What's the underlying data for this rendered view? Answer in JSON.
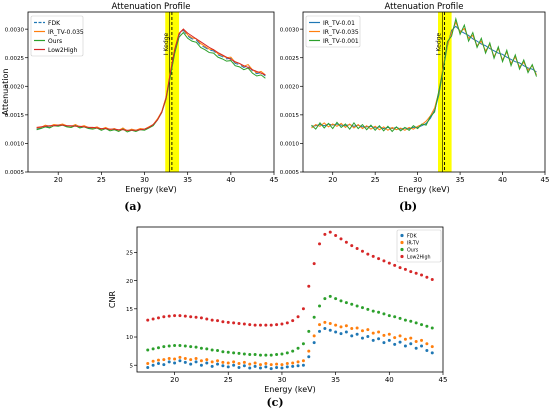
{
  "captions": {
    "a": "(a)",
    "b": "(b)",
    "c": "(c)"
  },
  "chart_data": [
    {
      "id": "a",
      "type": "line",
      "title": "Attenuation Profile",
      "xlabel": "Energy (keV)",
      "ylabel": "Attenuation",
      "xlim": [
        16.5,
        45
      ],
      "ylim": [
        0.0005,
        0.0033
      ],
      "xticks": [
        20,
        25,
        30,
        35,
        40,
        45
      ],
      "yticks": [
        0.0005,
        0.001,
        0.0015,
        0.002,
        0.0025,
        0.003
      ],
      "ytick_labels": [
        "0.0005",
        "0.0010",
        "0.0015",
        "0.0020",
        "0.0025",
        "0.0030"
      ],
      "legend_position": "top-left",
      "grid": false,
      "kedge": {
        "label": "I Kedge",
        "x": 33.17,
        "band": [
          32.4,
          34.0
        ],
        "color": "#ffff00"
      },
      "x": [
        17.5,
        18,
        18.5,
        19,
        19.5,
        20,
        20.5,
        21,
        21.5,
        22,
        22.5,
        23,
        23.5,
        24,
        24.5,
        25,
        25.5,
        26,
        26.5,
        27,
        27.5,
        28,
        28.5,
        29,
        29.5,
        30,
        30.5,
        31,
        31.5,
        32,
        32.5,
        33,
        33.5,
        34,
        34.5,
        35,
        35.5,
        36,
        36.5,
        37,
        37.5,
        38,
        38.5,
        39,
        39.5,
        40,
        40.5,
        41,
        41.5,
        42,
        42.5,
        43,
        43.5,
        44
      ],
      "series": [
        {
          "name": "FDK",
          "color": "#1f77b4",
          "dash": "6,3",
          "values": [
            0.00125,
            0.00127,
            0.0013,
            0.00128,
            0.00132,
            0.00131,
            0.00133,
            0.0013,
            0.00129,
            0.00132,
            0.00128,
            0.0013,
            0.00127,
            0.00126,
            0.00128,
            0.00124,
            0.00127,
            0.00123,
            0.00125,
            0.00122,
            0.00126,
            0.00121,
            0.00124,
            0.00122,
            0.00125,
            0.00124,
            0.00128,
            0.00132,
            0.00142,
            0.00155,
            0.0018,
            0.0022,
            0.0026,
            0.0029,
            0.00298,
            0.00288,
            0.00283,
            0.00281,
            0.00272,
            0.00268,
            0.00263,
            0.00262,
            0.00255,
            0.00252,
            0.00248,
            0.00249,
            0.0024,
            0.00238,
            0.00233,
            0.00236,
            0.00227,
            0.00222,
            0.00224,
            0.00218
          ]
        },
        {
          "name": "IR_TV-0.035",
          "color": "#ff7f0e",
          "dash": "",
          "values": [
            0.00127,
            0.00128,
            0.00132,
            0.0013,
            0.00133,
            0.00132,
            0.00134,
            0.00131,
            0.0013,
            0.00133,
            0.00129,
            0.00131,
            0.00128,
            0.00127,
            0.00129,
            0.00125,
            0.00128,
            0.00124,
            0.00126,
            0.00123,
            0.00127,
            0.00122,
            0.00125,
            0.00123,
            0.00126,
            0.00125,
            0.00129,
            0.00133,
            0.00143,
            0.00156,
            0.00181,
            0.00222,
            0.00262,
            0.00293,
            0.003,
            0.0029,
            0.00285,
            0.00283,
            0.00275,
            0.0027,
            0.00265,
            0.00264,
            0.00257,
            0.00254,
            0.0025,
            0.00251,
            0.00242,
            0.0024,
            0.00235,
            0.00238,
            0.00229,
            0.00224,
            0.00226,
            0.0022
          ]
        },
        {
          "name": "Ours",
          "color": "#2ca02c",
          "dash": "",
          "values": [
            0.00124,
            0.00126,
            0.00129,
            0.00127,
            0.00131,
            0.0013,
            0.00132,
            0.00129,
            0.00128,
            0.00131,
            0.00127,
            0.00129,
            0.00126,
            0.00125,
            0.00127,
            0.00123,
            0.00126,
            0.00122,
            0.00124,
            0.00121,
            0.00125,
            0.0012,
            0.00123,
            0.00121,
            0.00124,
            0.00123,
            0.00127,
            0.00131,
            0.00141,
            0.00154,
            0.00178,
            0.00218,
            0.00258,
            0.00286,
            0.00294,
            0.00284,
            0.00279,
            0.00277,
            0.00268,
            0.00264,
            0.00259,
            0.00258,
            0.00251,
            0.00248,
            0.00244,
            0.00245,
            0.00236,
            0.00234,
            0.00229,
            0.00232,
            0.00223,
            0.00218,
            0.0022,
            0.00214
          ]
        },
        {
          "name": "Low2High",
          "color": "#d62728",
          "dash": "",
          "values": [
            0.00128,
            0.00129,
            0.0013,
            0.00131,
            0.00131,
            0.00132,
            0.00132,
            0.00131,
            0.00131,
            0.0013,
            0.0013,
            0.00129,
            0.00128,
            0.00128,
            0.00127,
            0.00126,
            0.00126,
            0.00125,
            0.00125,
            0.00124,
            0.00124,
            0.00123,
            0.00123,
            0.00123,
            0.00124,
            0.00125,
            0.00128,
            0.00133,
            0.00141,
            0.00155,
            0.0018,
            0.00225,
            0.00265,
            0.00292,
            0.003,
            0.00293,
            0.00288,
            0.00283,
            0.00278,
            0.00273,
            0.00268,
            0.00264,
            0.00259,
            0.00255,
            0.00251,
            0.00247,
            0.00243,
            0.0024,
            0.00236,
            0.00233,
            0.00229,
            0.00226,
            0.00223,
            0.0022
          ]
        }
      ]
    },
    {
      "id": "b",
      "type": "line",
      "title": "Attenuation Profile",
      "xlabel": "Energy (keV)",
      "ylabel": "",
      "xlim": [
        16.5,
        45
      ],
      "ylim": [
        0.0005,
        0.0033
      ],
      "xticks": [
        20,
        25,
        30,
        35,
        40,
        45
      ],
      "yticks": [
        0.0005,
        0.001,
        0.0015,
        0.002,
        0.0025,
        0.003
      ],
      "ytick_labels": [
        "0.0005",
        "0.0010",
        "0.0015",
        "0.0020",
        "0.0025",
        "0.0030"
      ],
      "legend_position": "top-left",
      "grid": false,
      "kedge": {
        "label": "I Kedge",
        "x": 33.17,
        "band": [
          32.4,
          34.0
        ],
        "color": "#ffff00"
      },
      "x": [
        17.5,
        18,
        18.5,
        19,
        19.5,
        20,
        20.5,
        21,
        21.5,
        22,
        22.5,
        23,
        23.5,
        24,
        24.5,
        25,
        25.5,
        26,
        26.5,
        27,
        27.5,
        28,
        28.5,
        29,
        29.5,
        30,
        30.5,
        31,
        31.5,
        32,
        32.5,
        33,
        33.5,
        34,
        34.5,
        35,
        35.5,
        36,
        36.5,
        37,
        37.5,
        38,
        38.5,
        39,
        39.5,
        40,
        40.5,
        41,
        41.5,
        42,
        42.5,
        43,
        43.5,
        44
      ],
      "series": [
        {
          "name": "IR_TV-0.01",
          "color": "#1f77b4",
          "dash": "",
          "values": [
            0.0013,
            0.00131,
            0.00133,
            0.00131,
            0.00134,
            0.00132,
            0.00134,
            0.00132,
            0.00131,
            0.00133,
            0.0013,
            0.00132,
            0.00129,
            0.00129,
            0.0013,
            0.00127,
            0.00129,
            0.00126,
            0.00128,
            0.00126,
            0.00128,
            0.00125,
            0.00127,
            0.00126,
            0.00128,
            0.00128,
            0.00131,
            0.00135,
            0.00144,
            0.00158,
            0.00185,
            0.0023,
            0.0027,
            0.00298,
            0.00305,
            0.00297,
            0.00293,
            0.00289,
            0.00283,
            0.00279,
            0.00274,
            0.00271,
            0.00266,
            0.00262,
            0.00258,
            0.00256,
            0.00251,
            0.00247,
            0.00243,
            0.00241,
            0.00236,
            0.00232,
            0.0023,
            0.00225
          ]
        },
        {
          "name": "IR_TV-0.035",
          "color": "#ff7f0e",
          "dash": "",
          "values": [
            0.00127,
            0.00133,
            0.0013,
            0.00136,
            0.00129,
            0.00134,
            0.0013,
            0.00135,
            0.00128,
            0.00134,
            0.00127,
            0.00133,
            0.00126,
            0.00131,
            0.00125,
            0.0013,
            0.00124,
            0.00129,
            0.00123,
            0.00128,
            0.00124,
            0.00127,
            0.00123,
            0.00128,
            0.00125,
            0.0013,
            0.00133,
            0.00139,
            0.00148,
            0.00162,
            0.0019,
            0.00235,
            0.00272,
            0.00294,
            0.00312,
            0.00295,
            0.00301,
            0.00284,
            0.00289,
            0.00271,
            0.00279,
            0.00262,
            0.00273,
            0.00252,
            0.00266,
            0.00246,
            0.0026,
            0.0024,
            0.00251,
            0.00234,
            0.00242,
            0.00228,
            0.00236,
            0.0022
          ]
        },
        {
          "name": "IR_TV-0.001",
          "color": "#2ca02c",
          "dash": "",
          "values": [
            0.00132,
            0.00125,
            0.00136,
            0.00127,
            0.00135,
            0.00126,
            0.00137,
            0.00128,
            0.00134,
            0.00125,
            0.00136,
            0.00126,
            0.00133,
            0.00124,
            0.00132,
            0.00123,
            0.00131,
            0.00122,
            0.0013,
            0.00121,
            0.00129,
            0.00122,
            0.00128,
            0.00123,
            0.00131,
            0.00126,
            0.00134,
            0.00132,
            0.00147,
            0.00155,
            0.00192,
            0.00228,
            0.00278,
            0.00288,
            0.00318,
            0.00291,
            0.00307,
            0.00279,
            0.00294,
            0.00268,
            0.00284,
            0.00258,
            0.00276,
            0.00249,
            0.00269,
            0.00243,
            0.00263,
            0.00236,
            0.00255,
            0.0023,
            0.00246,
            0.00224,
            0.00238,
            0.00217
          ]
        }
      ]
    },
    {
      "id": "c",
      "type": "scatter",
      "title": "",
      "xlabel": "Energy (keV)",
      "ylabel": "CNR",
      "xlim": [
        16.5,
        45
      ],
      "ylim": [
        3.8,
        29.5
      ],
      "xticks": [
        20,
        25,
        30,
        35,
        40,
        45
      ],
      "yticks": [
        5,
        10,
        15,
        20,
        25
      ],
      "ytick_labels": [
        "5",
        "10",
        "15",
        "20",
        "25"
      ],
      "legend_position": "top-right",
      "grid": false,
      "x": [
        17.5,
        18,
        18.5,
        19,
        19.5,
        20,
        20.5,
        21,
        21.5,
        22,
        22.5,
        23,
        23.5,
        24,
        24.5,
        25,
        25.5,
        26,
        26.5,
        27,
        27.5,
        28,
        28.5,
        29,
        29.5,
        30,
        30.5,
        31,
        31.5,
        32,
        32.5,
        33,
        33.5,
        34,
        34.5,
        35,
        35.5,
        36,
        36.5,
        37,
        37.5,
        38,
        38.5,
        39,
        39.5,
        40,
        40.5,
        41,
        41.5,
        42,
        42.5,
        43,
        43.5,
        44
      ],
      "series": [
        {
          "name": "FDK",
          "color": "#1f77b4",
          "values": [
            4.6,
            5.0,
            5.3,
            5.1,
            5.6,
            5.4,
            5.8,
            5.5,
            5.2,
            5.6,
            5.0,
            5.4,
            4.8,
            5.2,
            4.9,
            4.7,
            5.0,
            4.6,
            4.9,
            4.5,
            4.8,
            4.5,
            4.7,
            4.4,
            4.6,
            4.5,
            4.7,
            4.8,
            4.9,
            5.0,
            6.5,
            9.0,
            11.0,
            11.5,
            11.2,
            10.9,
            10.6,
            10.9,
            10.2,
            10.5,
            9.8,
            10.1,
            9.4,
            9.7,
            9.0,
            9.4,
            8.7,
            9.1,
            8.4,
            8.8,
            8.0,
            8.4,
            7.6,
            7.2
          ]
        },
        {
          "name": "IR-TV",
          "color": "#ff7f0e",
          "values": [
            5.3,
            5.7,
            5.9,
            6.0,
            6.2,
            6.1,
            6.4,
            6.2,
            6.0,
            6.2,
            5.8,
            6.0,
            5.6,
            5.8,
            5.5,
            5.4,
            5.6,
            5.3,
            5.5,
            5.2,
            5.4,
            5.1,
            5.3,
            5.1,
            5.2,
            5.1,
            5.3,
            5.4,
            5.6,
            5.8,
            7.5,
            10.2,
            12.2,
            12.6,
            12.4,
            12.1,
            11.8,
            12.0,
            11.5,
            11.6,
            11.1,
            11.3,
            10.7,
            10.9,
            10.3,
            10.5,
            9.9,
            10.2,
            9.6,
            9.8,
            9.2,
            9.4,
            8.8,
            8.3
          ]
        },
        {
          "name": "Ours",
          "color": "#2ca02c",
          "values": [
            7.7,
            7.9,
            8.1,
            8.3,
            8.4,
            8.5,
            8.5,
            8.4,
            8.3,
            8.2,
            8.0,
            7.9,
            7.7,
            7.6,
            7.4,
            7.3,
            7.2,
            7.1,
            7.0,
            6.9,
            6.9,
            6.8,
            6.8,
            6.8,
            6.9,
            7.0,
            7.2,
            7.5,
            8.0,
            8.8,
            11.0,
            13.5,
            15.5,
            16.8,
            17.2,
            16.8,
            16.4,
            16.1,
            15.8,
            15.5,
            15.2,
            14.9,
            14.6,
            14.4,
            14.1,
            13.8,
            13.6,
            13.3,
            13.0,
            12.8,
            12.5,
            12.2,
            11.9,
            11.6
          ]
        },
        {
          "name": "Low2High",
          "color": "#d62728",
          "values": [
            13.0,
            13.2,
            13.4,
            13.6,
            13.7,
            13.8,
            13.8,
            13.7,
            13.6,
            13.5,
            13.4,
            13.2,
            13.0,
            12.9,
            12.7,
            12.6,
            12.5,
            12.4,
            12.3,
            12.2,
            12.1,
            12.1,
            12.1,
            12.1,
            12.2,
            12.3,
            12.5,
            12.9,
            13.6,
            15.0,
            19.0,
            23.0,
            26.5,
            28.2,
            28.6,
            28.0,
            27.4,
            26.8,
            26.2,
            25.7,
            25.2,
            24.7,
            24.3,
            23.9,
            23.5,
            23.1,
            22.7,
            22.3,
            22.0,
            21.6,
            21.3,
            21.0,
            20.6,
            20.2
          ]
        }
      ]
    }
  ]
}
